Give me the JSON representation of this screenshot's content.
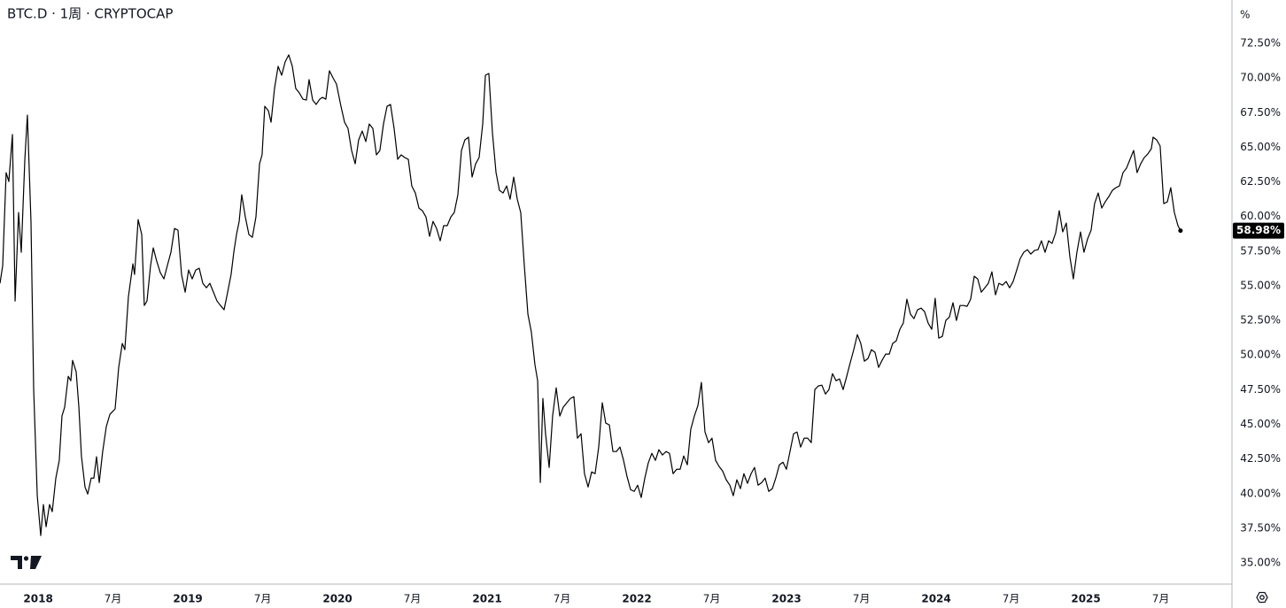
{
  "chart_data": {
    "type": "line",
    "title": "BTC.D · 1周 · CRYPTOCAP",
    "unit": "%",
    "color": "#000000",
    "grid": false,
    "last_label": "58.98%",
    "xlim": [
      2017.745,
      2025.97
    ],
    "ylim": [
      33.47,
      75.63
    ],
    "xticks": [
      2018,
      {
        "value": 2018.5,
        "label": "7月"
      },
      2019,
      {
        "value": 2019.5,
        "label": "7月"
      },
      2020,
      {
        "value": 2020.5,
        "label": "7月"
      },
      2021,
      {
        "value": 2021.5,
        "label": "7月"
      },
      2022,
      {
        "value": 2022.5,
        "label": "7月"
      },
      2023,
      {
        "value": 2023.5,
        "label": "7月"
      },
      2024,
      {
        "value": 2024.5,
        "label": "7月"
      },
      2025,
      {
        "value": 2025.5,
        "label": "7月"
      }
    ],
    "yticks": [
      {
        "value": 35,
        "label": "35.00%"
      },
      {
        "value": 37.5,
        "label": "37.50%"
      },
      {
        "value": 40,
        "label": "40.00%"
      },
      {
        "value": 42.5,
        "label": "42.50%"
      },
      {
        "value": 45,
        "label": "45.00%"
      },
      {
        "value": 47.5,
        "label": "47.50%"
      },
      {
        "value": 50,
        "label": "50.00%"
      },
      {
        "value": 52.5,
        "label": "52.50%"
      },
      {
        "value": 55,
        "label": "55.00%"
      },
      {
        "value": 57.5,
        "label": "57.50%"
      },
      {
        "value": 60,
        "label": "60.00%"
      },
      {
        "value": 62.5,
        "label": "62.50%"
      },
      {
        "value": 65,
        "label": "65.00%"
      },
      {
        "value": 67.5,
        "label": "67.50%"
      },
      {
        "value": 70,
        "label": "70.00%"
      },
      {
        "value": 72.5,
        "label": "72.50%"
      }
    ],
    "x": [
      2017.745,
      2017.763,
      2017.786,
      2017.804,
      2017.828,
      2017.846,
      2017.869,
      2017.887,
      2017.911,
      2017.928,
      2017.952,
      2017.97,
      2017.994,
      2018.017,
      2018.035,
      2018.053,
      2018.076,
      2018.094,
      2018.118,
      2018.141,
      2018.159,
      2018.177,
      2018.201,
      2018.218,
      2018.23,
      2018.254,
      2018.272,
      2018.289,
      2018.313,
      2018.331,
      2018.354,
      2018.372,
      2018.39,
      2018.408,
      2018.431,
      2018.455,
      2018.479,
      2018.514,
      2018.538,
      2018.562,
      2018.579,
      2018.603,
      2018.633,
      2018.644,
      2018.668,
      2018.692,
      2018.709,
      2018.727,
      2018.751,
      2018.769,
      2018.792,
      2018.816,
      2018.84,
      2018.863,
      2018.887,
      2018.911,
      2018.934,
      2018.958,
      2018.982,
      2019.005,
      2019.029,
      2019.053,
      2019.076,
      2019.1,
      2019.124,
      2019.147,
      2019.171,
      2019.195,
      2019.218,
      2019.242,
      2019.266,
      2019.289,
      2019.307,
      2019.325,
      2019.343,
      2019.36,
      2019.384,
      2019.408,
      2019.431,
      2019.455,
      2019.479,
      2019.496,
      2019.514,
      2019.538,
      2019.556,
      2019.579,
      2019.603,
      2019.627,
      2019.65,
      2019.674,
      2019.698,
      2019.721,
      2019.745,
      2019.769,
      2019.792,
      2019.81,
      2019.834,
      2019.857,
      2019.881,
      2019.899,
      2019.922,
      2019.946,
      2019.97,
      2019.993,
      2020.023,
      2020.047,
      2020.07,
      2020.094,
      2020.118,
      2020.141,
      2020.165,
      2020.189,
      2020.212,
      2020.236,
      2020.26,
      2020.283,
      2020.307,
      2020.331,
      2020.354,
      2020.378,
      2020.402,
      2020.425,
      2020.449,
      2020.473,
      2020.496,
      2020.52,
      2020.544,
      2020.567,
      2020.591,
      2020.615,
      2020.638,
      2020.662,
      2020.686,
      2020.709,
      2020.733,
      2020.757,
      2020.78,
      2020.804,
      2020.828,
      2020.851,
      2020.875,
      2020.899,
      2020.923,
      2020.946,
      2020.97,
      2020.988,
      2021.011,
      2021.035,
      2021.059,
      2021.082,
      2021.106,
      2021.13,
      2021.153,
      2021.177,
      2021.201,
      2021.224,
      2021.248,
      2021.272,
      2021.295,
      2021.319,
      2021.337,
      2021.355,
      2021.372,
      2021.39,
      2021.414,
      2021.437,
      2021.461,
      2021.485,
      2021.508,
      2021.532,
      2021.556,
      2021.579,
      2021.603,
      2021.627,
      2021.65,
      2021.674,
      2021.698,
      2021.721,
      2021.745,
      2021.769,
      2021.792,
      2021.816,
      2021.84,
      2021.863,
      2021.887,
      2021.911,
      2021.934,
      2021.958,
      2021.982,
      2022.005,
      2022.029,
      2022.053,
      2022.076,
      2022.1,
      2022.124,
      2022.147,
      2022.171,
      2022.195,
      2022.218,
      2022.242,
      2022.266,
      2022.289,
      2022.313,
      2022.337,
      2022.36,
      2022.384,
      2022.408,
      2022.431,
      2022.455,
      2022.479,
      2022.502,
      2022.526,
      2022.55,
      2022.573,
      2022.597,
      2022.621,
      2022.644,
      2022.668,
      2022.692,
      2022.715,
      2022.739,
      2022.763,
      2022.786,
      2022.81,
      2022.834,
      2022.857,
      2022.881,
      2022.905,
      2022.928,
      2022.952,
      2022.976,
      2022.999,
      2023.023,
      2023.047,
      2023.07,
      2023.094,
      2023.118,
      2023.141,
      2023.165,
      2023.189,
      2023.212,
      2023.236,
      2023.26,
      2023.283,
      2023.307,
      2023.331,
      2023.354,
      2023.378,
      2023.402,
      2023.425,
      2023.449,
      2023.473,
      2023.496,
      2023.52,
      2023.544,
      2023.567,
      2023.591,
      2023.615,
      2023.638,
      2023.662,
      2023.686,
      2023.709,
      2023.733,
      2023.757,
      2023.78,
      2023.804,
      2023.828,
      2023.851,
      2023.875,
      2023.899,
      2023.922,
      2023.946,
      2023.97,
      2023.993,
      2024.017,
      2024.041,
      2024.064,
      2024.088,
      2024.112,
      2024.135,
      2024.159,
      2024.183,
      2024.206,
      2024.23,
      2024.254,
      2024.277,
      2024.301,
      2024.325,
      2024.348,
      2024.372,
      2024.396,
      2024.419,
      2024.443,
      2024.467,
      2024.49,
      2024.514,
      2024.538,
      2024.561,
      2024.585,
      2024.609,
      2024.632,
      2024.656,
      2024.68,
      2024.703,
      2024.727,
      2024.751,
      2024.774,
      2024.798,
      2024.822,
      2024.845,
      2024.869,
      2024.893,
      2024.916,
      2024.94,
      2024.964,
      2024.987,
      2025.011,
      2025.035,
      2025.058,
      2025.082,
      2025.106,
      2025.129,
      2025.153,
      2025.177,
      2025.2,
      2025.224,
      2025.248,
      2025.271,
      2025.295,
      2025.319,
      2025.342,
      2025.366,
      2025.39,
      2025.413,
      2025.437,
      2025.449,
      2025.473,
      2025.496,
      2025.52,
      2025.544,
      2025.567,
      2025.591,
      2025.615,
      2025.632
    ],
    "values": [
      55.18,
      56.46,
      63.17,
      62.53,
      65.92,
      53.9,
      60.29,
      57.42,
      64.13,
      67.32,
      59.65,
      47.51,
      39.85,
      36.97,
      39.21,
      37.61,
      39.21,
      38.7,
      41.12,
      42.4,
      45.6,
      46.24,
      48.47,
      48.15,
      49.62,
      48.79,
      46.24,
      42.72,
      40.48,
      39.97,
      41.12,
      41.12,
      42.66,
      40.8,
      43.04,
      44.83,
      45.72,
      46.11,
      49.11,
      50.84,
      50.39,
      54.22,
      56.59,
      55.82,
      59.78,
      58.7,
      53.58,
      53.9,
      56.46,
      57.74,
      56.78,
      55.95,
      55.5,
      56.46,
      57.42,
      59.14,
      59.02,
      55.82,
      54.54,
      56.14,
      55.5,
      56.14,
      56.27,
      55.18,
      54.86,
      55.18,
      54.54,
      53.9,
      53.58,
      53.27,
      54.54,
      55.82,
      57.42,
      58.7,
      59.65,
      61.57,
      59.97,
      58.7,
      58.5,
      59.97,
      63.81,
      64.45,
      67.96,
      67.64,
      66.81,
      69.24,
      70.84,
      70.2,
      71.16,
      71.67,
      70.84,
      69.24,
      68.92,
      68.47,
      68.41,
      69.88,
      68.41,
      68.09,
      68.47,
      68.6,
      68.47,
      70.52,
      70.01,
      69.56,
      67.96,
      66.81,
      66.36,
      64.77,
      63.81,
      65.53,
      66.17,
      65.41,
      66.68,
      66.36,
      64.45,
      64.77,
      66.68,
      67.96,
      68.09,
      66.36,
      64.13,
      64.45,
      64.26,
      64.13,
      62.21,
      61.7,
      60.61,
      60.42,
      59.97,
      58.57,
      59.65,
      59.14,
      58.25,
      59.34,
      59.34,
      59.97,
      60.29,
      61.57,
      64.77,
      65.53,
      65.73,
      62.85,
      63.81,
      64.26,
      66.68,
      70.2,
      70.33,
      66.05,
      63.17,
      61.89,
      61.7,
      62.21,
      61.25,
      62.85,
      61.25,
      60.29,
      56.46,
      52.95,
      51.67,
      49.3,
      48.15,
      40.8,
      46.87,
      44.32,
      41.89,
      45.6,
      47.64,
      45.6,
      46.24,
      46.56,
      46.87,
      47.0,
      44.0,
      44.32,
      41.44,
      40.48,
      41.57,
      41.44,
      43.36,
      46.56,
      45.09,
      44.96,
      43.04,
      43.04,
      43.36,
      42.4,
      41.25,
      40.29,
      40.16,
      40.61,
      39.72,
      41.12,
      42.21,
      42.91,
      42.4,
      43.17,
      42.79,
      43.04,
      42.91,
      41.44,
      41.76,
      41.76,
      42.72,
      42.08,
      44.64,
      45.6,
      46.36,
      48.03,
      44.45,
      43.68,
      44.0,
      42.4,
      41.95,
      41.63,
      41.0,
      40.61,
      39.85,
      41.0,
      40.36,
      41.44,
      40.74,
      41.44,
      41.89,
      40.61,
      40.8,
      41.12,
      40.16,
      40.36,
      41.12,
      42.08,
      42.27,
      41.76,
      43.04,
      44.32,
      44.45,
      43.36,
      44.0,
      44.0,
      43.68,
      47.51,
      47.77,
      47.83,
      47.19,
      47.51,
      48.66,
      48.15,
      48.28,
      47.51,
      48.47,
      49.43,
      50.39,
      51.48,
      50.84,
      49.56,
      49.75,
      50.39,
      50.2,
      49.11,
      49.62,
      50.07,
      50.07,
      50.84,
      51.03,
      51.86,
      52.31,
      54.03,
      52.95,
      52.63,
      53.27,
      53.39,
      53.14,
      52.31,
      51.86,
      54.1,
      51.22,
      51.35,
      52.5,
      52.75,
      53.78,
      52.5,
      53.58,
      53.58,
      53.52,
      54.03,
      55.69,
      55.5,
      54.54,
      54.86,
      55.18,
      56.01,
      54.35,
      55.18,
      55.05,
      55.31,
      54.86,
      55.31,
      56.14,
      56.97,
      57.42,
      57.61,
      57.29,
      57.55,
      57.61,
      58.25,
      57.42,
      58.25,
      58.06,
      58.82,
      60.42,
      58.89,
      59.53,
      57.1,
      55.5,
      57.42,
      58.89,
      57.42,
      58.38,
      59.02,
      60.93,
      61.7,
      60.61,
      61.06,
      61.44,
      61.89,
      62.08,
      62.21,
      63.17,
      63.49,
      64.13,
      64.77,
      63.17,
      63.81,
      64.26,
      64.51,
      64.89,
      65.73,
      65.53,
      65.09,
      60.93,
      61.06,
      62.08,
      60.29,
      59.34,
      58.98
    ]
  }
}
